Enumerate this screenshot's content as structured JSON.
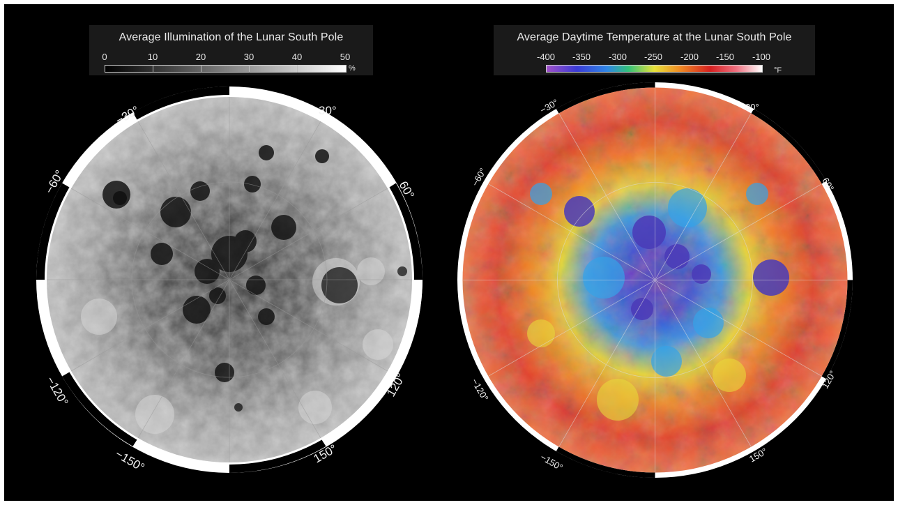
{
  "left_map": {
    "title": "Average Illumination of the Lunar South Pole",
    "legend_ticks": [
      "0",
      "10",
      "20",
      "30",
      "40",
      "50"
    ],
    "legend_unit": "%",
    "legend_min": 0,
    "legend_max": 50,
    "longitude_labels": [
      "30°",
      "60°",
      "120°",
      "150°",
      "−150°",
      "−120°",
      "−60°",
      "−30°"
    ]
  },
  "right_map": {
    "title": "Average Daytime Temperature at the Lunar South Pole",
    "legend_ticks": [
      "-400",
      "-350",
      "-300",
      "-250",
      "-200",
      "-150",
      "-100"
    ],
    "legend_unit": "°F",
    "legend_min": -400,
    "legend_max": -100,
    "longitude_labels": [
      "30°",
      "60°",
      "120°",
      "150°",
      "−150°",
      "−120°",
      "−60°",
      "−30°"
    ],
    "colors": [
      "#a050c8",
      "#3b3bd6",
      "#2f86e6",
      "#33c27a",
      "#e8e23a",
      "#f08a23",
      "#d62020",
      "#f07080",
      "#ffffff"
    ]
  }
}
